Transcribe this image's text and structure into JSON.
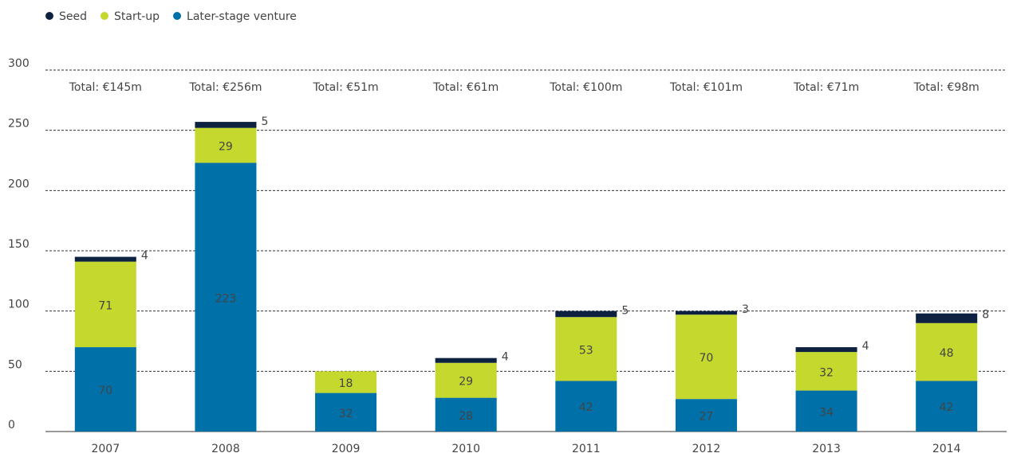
{
  "chart_data": {
    "type": "stacked_bar",
    "categories": [
      "2007",
      "2008",
      "2009",
      "2010",
      "2011",
      "2012",
      "2013",
      "2014"
    ],
    "totals": [
      "Total: €145m",
      "Total: €256m",
      "Total: €51m",
      "Total: €61m",
      "Total: €100m",
      "Total: €101m",
      "Total: €71m",
      "Total: €98m"
    ],
    "series": [
      {
        "name": "Later-stage venture",
        "color": "#0070a8",
        "values": [
          70,
          223,
          32,
          28,
          42,
          27,
          34,
          42
        ]
      },
      {
        "name": "Start-up",
        "color": "#c4d82e",
        "values": [
          71,
          29,
          18,
          29,
          53,
          70,
          32,
          48
        ]
      },
      {
        "name": "Seed",
        "color": "#0d2240",
        "values": [
          4,
          5,
          null,
          4,
          5,
          3,
          4,
          8
        ]
      }
    ],
    "legend_order": [
      2,
      1,
      0
    ],
    "ylim": [
      0,
      300
    ],
    "yticks": [
      0,
      50,
      100,
      150,
      200,
      250,
      300
    ],
    "grid": true
  }
}
